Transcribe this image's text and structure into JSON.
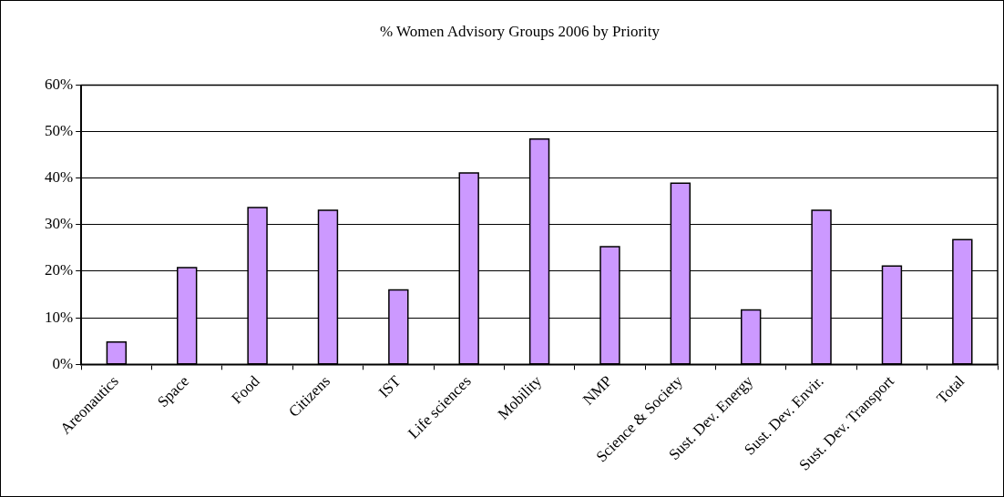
{
  "chart_data": {
    "type": "bar",
    "title": "% Women Advisory Groups 2006 by Priority",
    "categories": [
      "Areonautics",
      "Space",
      "Food",
      "Citizens",
      "IST",
      "Life sciences",
      "Mobility",
      "NMP",
      "Science & Society",
      "Sust. Dev. Energy",
      "Sust. Dev. Envir.",
      "Sust. Dev. Transport",
      "Total"
    ],
    "values": [
      4.8,
      20.8,
      33.7,
      33.1,
      16,
      41.1,
      48.4,
      25.3,
      38.9,
      11.7,
      33.1,
      21.1,
      26.8
    ],
    "color": "#cc99ff",
    "ylim": [
      0,
      60
    ],
    "yticks": [
      {
        "value": 0,
        "label": "0%"
      },
      {
        "value": 10,
        "label": "10%"
      },
      {
        "value": 20,
        "label": "20%"
      },
      {
        "value": 30,
        "label": "30%"
      },
      {
        "value": 40,
        "label": "40%"
      },
      {
        "value": 50,
        "label": "50%"
      },
      {
        "value": 60,
        "label": "60%"
      }
    ],
    "grid": "y",
    "legend": false
  }
}
